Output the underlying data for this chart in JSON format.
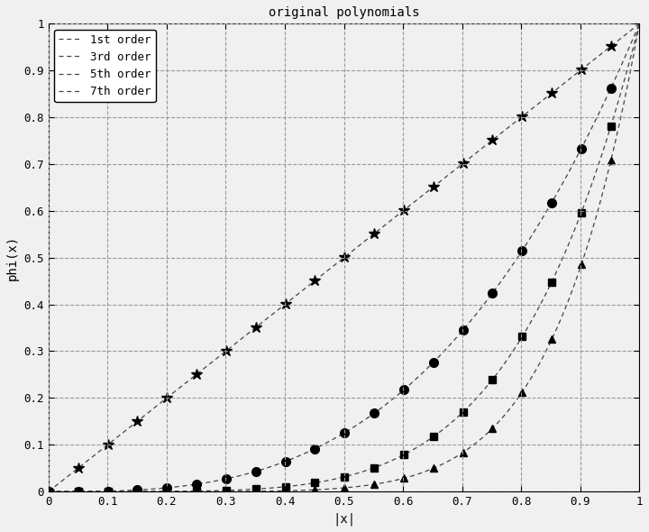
{
  "title": "original polynomials",
  "xlabel": "|x|",
  "ylabel": "phi(x)",
  "xlim": [
    0,
    1
  ],
  "ylim": [
    0,
    1
  ],
  "xticks": [
    0,
    0.1,
    0.2,
    0.3,
    0.4,
    0.5,
    0.6,
    0.7,
    0.8,
    0.9,
    1
  ],
  "yticks": [
    0,
    0.1,
    0.2,
    0.3,
    0.4,
    0.5,
    0.6,
    0.7,
    0.8,
    0.9,
    1
  ],
  "series": [
    {
      "label": "1st order",
      "order": 1,
      "linestyle": "--",
      "marker": "*",
      "color": "#444444",
      "markersize": 9
    },
    {
      "label": "3rd order",
      "order": 3,
      "linestyle": "--",
      "marker": "o",
      "color": "#444444",
      "markersize": 7
    },
    {
      "label": "5th order",
      "order": 5,
      "linestyle": "--",
      "marker": "s",
      "color": "#444444",
      "markersize": 6
    },
    {
      "label": "7th order",
      "order": 7,
      "linestyle": "--",
      "marker": "^",
      "color": "#444444",
      "markersize": 6
    }
  ],
  "n_points": 500,
  "marker_every": 0.05,
  "background_color": "#f0f0f0",
  "grid_color": "#999999",
  "grid_linestyle": "--",
  "grid_linewidth": 0.8,
  "line_linewidth": 0.9,
  "title_fontsize": 10,
  "label_fontsize": 10,
  "tick_fontsize": 9,
  "legend_fontsize": 9,
  "legend_loc": "upper left"
}
